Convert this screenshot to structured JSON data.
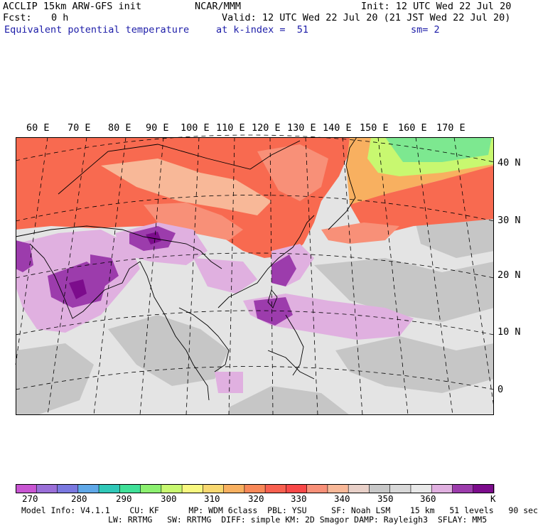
{
  "header": {
    "model": "ACCLIP 15km ARW-GFS init",
    "org": "NCAR/MMM",
    "init": "Init: 12 UTC Wed 22 Jul 20",
    "fcst_label": "Fcst:",
    "fcst_value": "0 h",
    "valid": "Valid: 12 UTC Wed 22 Jul 20 (21 JST Wed 22 Jul 20)",
    "field": "Equivalent potential temperature",
    "level": "at k-index =  51",
    "smooth": "sm= 2"
  },
  "map": {
    "lon_labels": [
      "60 E",
      "70 E",
      "80 E",
      "90 E",
      "100 E",
      "110 E",
      "120 E",
      "130 E",
      "140 E",
      "150 E",
      "160 E",
      "170 E"
    ],
    "lat_labels": [
      "40 N",
      "30 N",
      "20 N",
      "10 N",
      "0"
    ]
  },
  "colorbar": {
    "unit": "K",
    "labels": [
      "270",
      "280",
      "290",
      "300",
      "310",
      "320",
      "330",
      "340",
      "350",
      "360"
    ],
    "colors": [
      "#c855d2",
      "#9a6fd8",
      "#7a78e0",
      "#5fa8e8",
      "#30c8b8",
      "#40e098",
      "#8cf070",
      "#c8f870",
      "#f8f880",
      "#f8d870",
      "#f8b060",
      "#f88858",
      "#f86050",
      "#f84848",
      "#f89078",
      "#f8b898",
      "#e8d0c8",
      "#c8c8c8",
      "#d8d8d8",
      "#e8e8e8",
      "#e0b0e0",
      "#9c3cac",
      "#7c0c8c"
    ]
  },
  "footer": {
    "line1": "Model Info: V4.1.1    CU: KF      MP: WDM 6class  PBL: YSU     SF: Noah LSM    15 km   51 levels   90 sec",
    "line2": "LW: RRTMG   SW: RRTMG  DIFF: simple KM: 2D Smagor DAMP: Rayleigh3  SFLAY: MM5"
  }
}
